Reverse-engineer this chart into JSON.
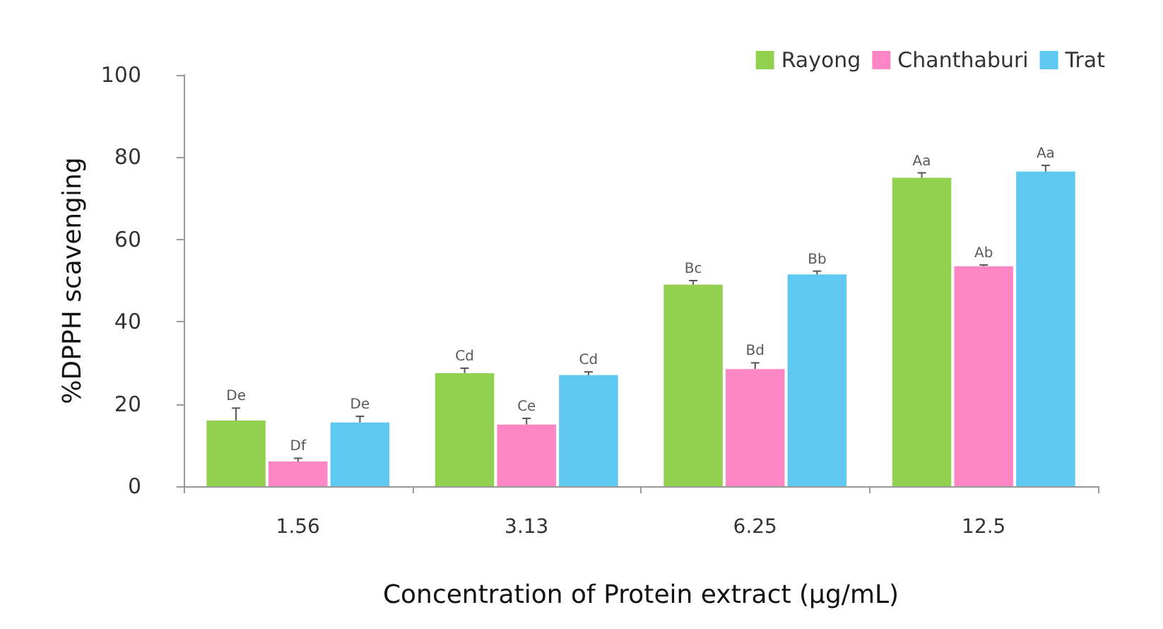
{
  "chart_data": {
    "type": "bar",
    "xlabel": "Concentration of Protein extract (µg/mL)",
    "ylabel": "%DPPH scavenging",
    "categories": [
      "1.56",
      "3.13",
      "6.25",
      "12.5"
    ],
    "series": [
      {
        "name": "Rayong",
        "color": "#92d050",
        "values": [
          16,
          27.5,
          49,
          75
        ],
        "errors": [
          [
            16,
            19
          ],
          [
            27.5,
            28.7
          ],
          [
            49,
            50
          ],
          [
            75,
            76.2
          ]
        ],
        "value_labels": [
          "De",
          "Cd",
          "Bc",
          "Aa"
        ]
      },
      {
        "name": "Chanthaburi",
        "color": "#ff86c4",
        "values": [
          6,
          15,
          28.5,
          53.5
        ],
        "errors": [
          [
            6,
            6.8
          ],
          [
            15,
            16.5
          ],
          [
            28.5,
            30
          ],
          [
            53.5,
            53.8
          ]
        ],
        "value_labels": [
          "Df",
          "Ce",
          "Bd",
          "Ab"
        ]
      },
      {
        "name": "Trat",
        "color": "#5ec8f0",
        "values": [
          15.5,
          27,
          51.5,
          76.5
        ],
        "errors": [
          [
            15.5,
            17
          ],
          [
            27,
            27.8
          ],
          [
            51.5,
            52.3
          ],
          [
            76.5,
            78
          ]
        ],
        "value_labels": [
          "De",
          "Cd",
          "Bb",
          "Aa"
        ]
      }
    ],
    "ylim": [
      0,
      100
    ],
    "yticks": [
      0,
      20,
      40,
      60,
      80,
      100
    ],
    "grid": false,
    "legend": "top right"
  }
}
